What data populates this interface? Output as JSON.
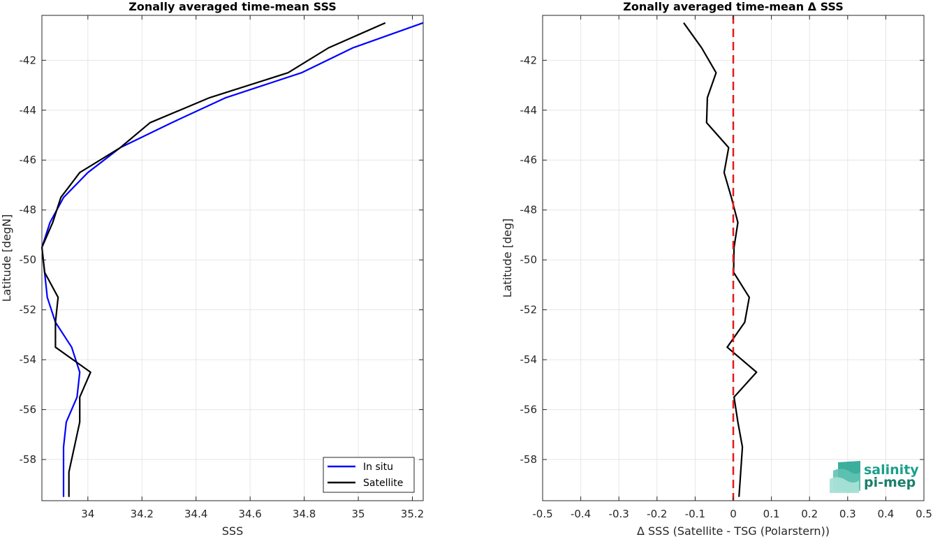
{
  "colors": {
    "in_situ": "#0000ff",
    "satellite": "#000000",
    "zero_line": "#e31a1c",
    "grid": "#e6e6e6",
    "logo_salinity": "#1aa08c",
    "logo_pimep": "#1a7f6a"
  },
  "logo": {
    "line1": "salinity",
    "line2": "pi-mep"
  },
  "chart_data": [
    {
      "type": "line",
      "title": "Zonally averaged time-mean SSS",
      "xlabel": "SSS",
      "ylabel": "Latitude [degN]",
      "xlim": [
        33.83,
        35.24
      ],
      "ylim": [
        -59.65,
        -40.2
      ],
      "xticks": [
        34,
        34.2,
        34.4,
        34.6,
        34.8,
        35,
        35.2
      ],
      "xtick_labels": [
        "34",
        "34.2",
        "34.4",
        "34.6",
        "34.8",
        "35",
        "35.2"
      ],
      "yticks": [
        -42,
        -44,
        -46,
        -48,
        -50,
        -52,
        -54,
        -56,
        -58
      ],
      "ytick_labels": [
        "-42",
        "-44",
        "-46",
        "-48",
        "-50",
        "-52",
        "-54",
        "-56",
        "-58"
      ],
      "grid": true,
      "legend": {
        "placement": "bottom-right",
        "entries": [
          "In situ",
          "Satellite"
        ]
      },
      "series": [
        {
          "name": "In situ",
          "color": "#0000ff",
          "x": [
            35.24,
            34.98,
            34.79,
            34.51,
            34.31,
            34.12,
            34.0,
            33.91,
            33.86,
            33.83,
            33.84,
            33.85,
            33.88,
            33.94,
            33.97,
            33.96,
            33.92,
            33.91,
            33.91
          ],
          "y": [
            -40.5,
            -41.5,
            -42.5,
            -43.5,
            -44.5,
            -45.5,
            -46.5,
            -47.5,
            -48.5,
            -49.5,
            -50.5,
            -51.5,
            -52.5,
            -53.5,
            -54.5,
            -55.5,
            -56.5,
            -57.5,
            -59.5
          ]
        },
        {
          "name": "Satellite",
          "color": "#000000",
          "x": [
            35.1,
            34.89,
            34.74,
            34.45,
            34.23,
            34.12,
            33.97,
            33.9,
            33.87,
            33.83,
            33.84,
            33.89,
            33.88,
            33.88,
            34.01,
            33.97,
            33.97,
            33.93,
            33.93
          ],
          "y": [
            -40.5,
            -41.5,
            -42.5,
            -43.5,
            -44.5,
            -45.5,
            -46.5,
            -47.5,
            -48.5,
            -49.5,
            -50.5,
            -51.5,
            -52.5,
            -53.5,
            -54.5,
            -55.5,
            -56.5,
            -58.5,
            -59.5
          ]
        }
      ]
    },
    {
      "type": "line",
      "title": "Zonally averaged time-mean Δ SSS",
      "xlabel": "Δ SSS (Satellite - TSG (Polarstern))",
      "ylabel": "Latitude [deg]",
      "xlim": [
        -0.5,
        0.5
      ],
      "ylim": [
        -59.65,
        -40.2
      ],
      "xticks": [
        -0.5,
        -0.4,
        -0.3,
        -0.2,
        -0.1,
        0,
        0.1,
        0.2,
        0.3,
        0.4,
        0.5
      ],
      "xtick_labels": [
        "-0.5",
        "-0.4",
        "-0.3",
        "-0.2",
        "-0.1",
        "0",
        "0.1",
        "0.2",
        "0.3",
        "0.4",
        "0.5"
      ],
      "yticks": [
        -42,
        -44,
        -46,
        -48,
        -50,
        -52,
        -54,
        -56,
        -58
      ],
      "ytick_labels": [
        "-42",
        "-44",
        "-46",
        "-48",
        "-50",
        "-52",
        "-54",
        "-56",
        "-58"
      ],
      "grid": true,
      "reference_line": {
        "x": 0,
        "style": "dashed",
        "color": "#e31a1c"
      },
      "series": [
        {
          "color": "#000000",
          "x": [
            -0.13,
            -0.083,
            -0.045,
            -0.068,
            -0.07,
            -0.012,
            -0.024,
            -0.005,
            0.012,
            0.002,
            0.001,
            0.042,
            0.03,
            -0.016,
            0.061,
            0.002,
            0.012,
            0.024,
            0.015
          ],
          "y": [
            -40.5,
            -41.5,
            -42.5,
            -43.5,
            -44.5,
            -45.5,
            -46.5,
            -47.5,
            -48.5,
            -49.5,
            -50.5,
            -51.5,
            -52.5,
            -53.5,
            -54.5,
            -55.5,
            -56.5,
            -57.5,
            -59.5
          ]
        }
      ]
    }
  ]
}
